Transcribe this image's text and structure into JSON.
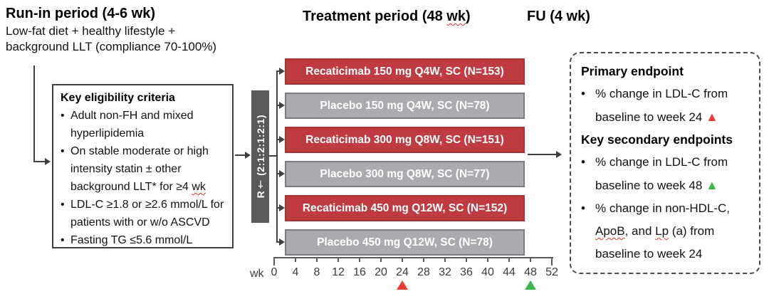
{
  "header": {
    "run_in": {
      "title": "Run-in period (4-6 wk)",
      "subtitle_lines": [
        "Low-fat diet + healthy lifestyle +",
        "background LLT (compliance 70-100%)"
      ]
    },
    "treatment_title_segments": [
      {
        "t": "Treatment period (48 "
      },
      {
        "t": "wk",
        "cls": "wavy"
      },
      {
        "t": ")"
      }
    ],
    "fu_title": "FU (4 wk)"
  },
  "eligibility": {
    "title": "Key eligibility criteria",
    "bullets": [
      {
        "segments": [
          {
            "t": "Adult non-FH and mixed hyperlipidemia"
          }
        ]
      },
      {
        "segments": [
          {
            "t": "On stable moderate or high intensity statin ± other background LLT* for ≥4 "
          },
          {
            "t": "wk",
            "cls": "wavy"
          }
        ]
      },
      {
        "segments": [
          {
            "t": "LDL-C ≥1.8 or ≥2.6 mmol/L for patients with or w/o ASCVD"
          }
        ]
      },
      {
        "segments": [
          {
            "t": "Fasting TG ≤5.6 mmol/L"
          }
        ]
      }
    ]
  },
  "randomization": {
    "label": "R† (2:1:2:1:2:1)"
  },
  "arms": [
    {
      "label": "Recaticimab 150 mg Q4W, SC (N=153)",
      "type": "treatment"
    },
    {
      "label": "Placebo 150 mg Q4W, SC (N=78)",
      "type": "placebo"
    },
    {
      "label": "Recaticimab 300 mg Q8W, SC (N=151)",
      "type": "treatment"
    },
    {
      "label": "Placebo 300 mg Q8W, SC (N=77)",
      "type": "placebo"
    },
    {
      "label": "Recaticimab 450 mg Q12W, SC (N=152)",
      "type": "treatment"
    },
    {
      "label": "Placebo 450 mg Q12W, SC (N=78)",
      "type": "placebo"
    }
  ],
  "axis": {
    "unit_label": "wk",
    "weeks": [
      "0",
      "4",
      "8",
      "12",
      "16",
      "20",
      "24",
      "28",
      "32",
      "36",
      "40",
      "44",
      "48",
      "52"
    ],
    "markers": [
      {
        "week": 24,
        "color": "#ee3b35",
        "shape": "triangle-up"
      },
      {
        "week": 48,
        "color": "#3db64b",
        "shape": "triangle-up"
      }
    ]
  },
  "endpoints": {
    "primary_title": "Primary endpoint",
    "primary_bullets": [
      {
        "segments": [
          {
            "t": "% change in LDL-C from baseline to week 24 "
          },
          {
            "t": "▲",
            "cls": "tri-red"
          }
        ]
      }
    ],
    "secondary_title": "Key secondary endpoints",
    "secondary_bullets": [
      {
        "segments": [
          {
            "t": "% change in LDL-C from baseline to week 48 "
          },
          {
            "t": "▲",
            "cls": "tri-green"
          }
        ]
      },
      {
        "segments": [
          {
            "t": "% change in non-HDL-C, "
          },
          {
            "t": "ApoB",
            "cls": "wavy"
          },
          {
            "t": ", and "
          },
          {
            "t": "Lp",
            "cls": "wavy"
          },
          {
            "t": " (a) from baseline to week 24"
          }
        ]
      }
    ]
  },
  "colors": {
    "treatment_bar": "#bf3b42",
    "placebo_bar": "#a9abae",
    "randomization_bar": "#58595b",
    "marker_week24": "#ee3b35",
    "marker_week48": "#3db64b"
  }
}
